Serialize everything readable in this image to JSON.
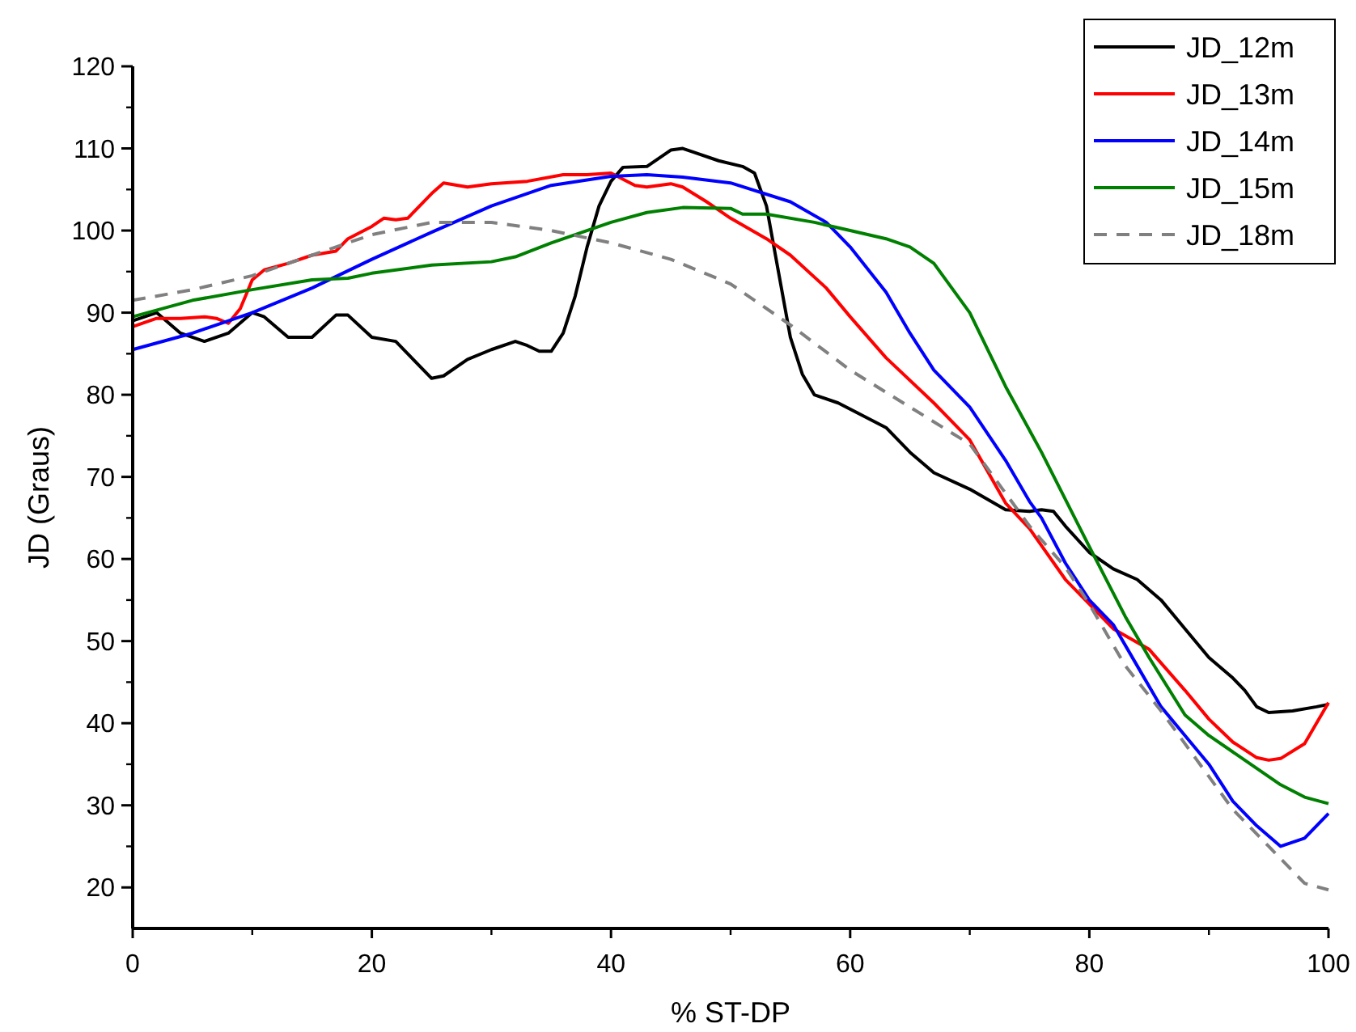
{
  "chart_data": {
    "type": "line",
    "xlabel": "% ST-DP",
    "ylabel": "JD (Graus)",
    "xlim": [
      0,
      100
    ],
    "xticks": [
      0,
      20,
      40,
      60,
      80,
      100
    ],
    "ylim": [
      15,
      120
    ],
    "yticks": [
      20,
      30,
      40,
      50,
      60,
      70,
      80,
      90,
      100,
      110,
      120
    ],
    "grid": false,
    "legend": "top right",
    "line_style": "solid",
    "marker": "none",
    "series": [
      {
        "name": "JD_12m",
        "color": "#000000",
        "x": [
          0,
          2,
          4,
          6,
          8,
          10,
          11,
          13,
          15,
          17,
          18,
          20,
          22,
          23,
          25,
          26,
          28,
          30,
          32,
          33,
          34,
          35,
          36,
          37,
          38,
          39,
          40,
          41,
          43,
          45,
          46,
          47,
          49,
          51,
          52,
          53,
          54,
          55,
          56,
          57,
          59,
          61,
          63,
          65,
          67,
          70,
          73,
          75,
          76,
          77,
          78,
          80,
          82,
          84,
          86,
          88,
          90,
          92,
          93,
          94,
          95,
          97,
          99,
          100
        ],
        "values": [
          89,
          90,
          87.5,
          86.5,
          87.5,
          90,
          89.5,
          87,
          87,
          89.7,
          89.7,
          87,
          86.5,
          85,
          82,
          82.3,
          84.3,
          85.5,
          86.5,
          86,
          85.3,
          85.3,
          87.5,
          92,
          98,
          103,
          106,
          107.7,
          107.8,
          109.8,
          110,
          109.5,
          108.5,
          107.8,
          107,
          103,
          95,
          87,
          82.5,
          80,
          79,
          77.5,
          76,
          73,
          70.5,
          68.5,
          66,
          65.8,
          66,
          65.8,
          64,
          60.8,
          58.8,
          57.5,
          55,
          51.5,
          48,
          45.5,
          44,
          42,
          41.3,
          41.5,
          42,
          42.3
        ]
      },
      {
        "name": "JD_13m",
        "color": "#ff0000",
        "x": [
          0,
          2,
          4,
          6,
          7,
          8,
          9,
          10,
          11,
          13,
          15,
          17,
          18,
          20,
          21,
          22,
          23,
          25,
          26,
          28,
          30,
          33,
          36,
          38,
          40,
          42,
          43,
          45,
          46,
          48,
          50,
          53,
          55,
          58,
          60,
          63,
          67,
          70,
          73,
          75,
          78,
          80,
          82,
          85,
          88,
          90,
          92,
          94,
          95,
          96,
          98,
          100
        ],
        "values": [
          88.3,
          89.3,
          89.3,
          89.5,
          89.3,
          88.7,
          90.5,
          94,
          95.2,
          96,
          97,
          97.5,
          99,
          100.5,
          101.5,
          101.3,
          101.5,
          104.5,
          105.8,
          105.3,
          105.7,
          106,
          106.8,
          106.8,
          107,
          105.5,
          105.3,
          105.7,
          105.3,
          103.5,
          101.5,
          99,
          97,
          93,
          89.5,
          84.5,
          79,
          74.5,
          66.8,
          63.7,
          57.5,
          54.5,
          51.5,
          49,
          44,
          40.5,
          37.7,
          35.8,
          35.5,
          35.7,
          37.5,
          42.5
        ]
      },
      {
        "name": "JD_14m",
        "color": "#0000ff",
        "x": [
          0,
          5,
          10,
          15,
          20,
          25,
          30,
          35,
          40,
          43,
          46,
          50,
          55,
          58,
          60,
          63,
          65,
          67,
          70,
          73,
          75,
          76,
          78,
          80,
          82,
          84,
          86,
          88,
          90,
          92,
          94,
          96,
          98,
          100
        ],
        "values": [
          85.5,
          87.5,
          90,
          93,
          96.5,
          99.8,
          103,
          105.5,
          106.6,
          106.8,
          106.5,
          105.8,
          103.5,
          101,
          98,
          92.5,
          87.5,
          83,
          78.5,
          72,
          67,
          65,
          59.5,
          55,
          52,
          47,
          42,
          38.5,
          35,
          30.5,
          27.5,
          25,
          26,
          29
        ]
      },
      {
        "name": "JD_15m",
        "color": "#008000",
        "x": [
          0,
          5,
          10,
          15,
          18,
          20,
          25,
          30,
          32,
          35,
          40,
          43,
          46,
          50,
          51,
          53,
          57,
          60,
          63,
          65,
          67,
          70,
          73,
          76,
          80,
          83,
          85,
          88,
          90,
          93,
          96,
          98,
          100
        ],
        "values": [
          89.5,
          91.5,
          92.8,
          94,
          94.2,
          94.8,
          95.8,
          96.2,
          96.8,
          98.5,
          101,
          102.2,
          102.8,
          102.7,
          102,
          102,
          101,
          100,
          99,
          98,
          96,
          90,
          81,
          73,
          61.5,
          53,
          48,
          41,
          38.5,
          35.5,
          32.5,
          31,
          30.2
        ]
      },
      {
        "name": "JD_18m",
        "color": "#808080",
        "line_style": "dashed",
        "x": [
          0,
          5,
          10,
          15,
          20,
          25,
          30,
          35,
          40,
          45,
          50,
          55,
          60,
          65,
          70,
          73,
          75,
          78,
          80,
          83,
          86,
          89,
          92,
          95,
          98,
          100
        ],
        "values": [
          91.5,
          92.8,
          94.5,
          97,
          99.5,
          101,
          101,
          100,
          98.5,
          96.5,
          93.5,
          88.5,
          83,
          78.5,
          74,
          68,
          64,
          59,
          54.5,
          47,
          41.5,
          35.5,
          29.5,
          25,
          20.5,
          19.7
        ]
      }
    ]
  }
}
